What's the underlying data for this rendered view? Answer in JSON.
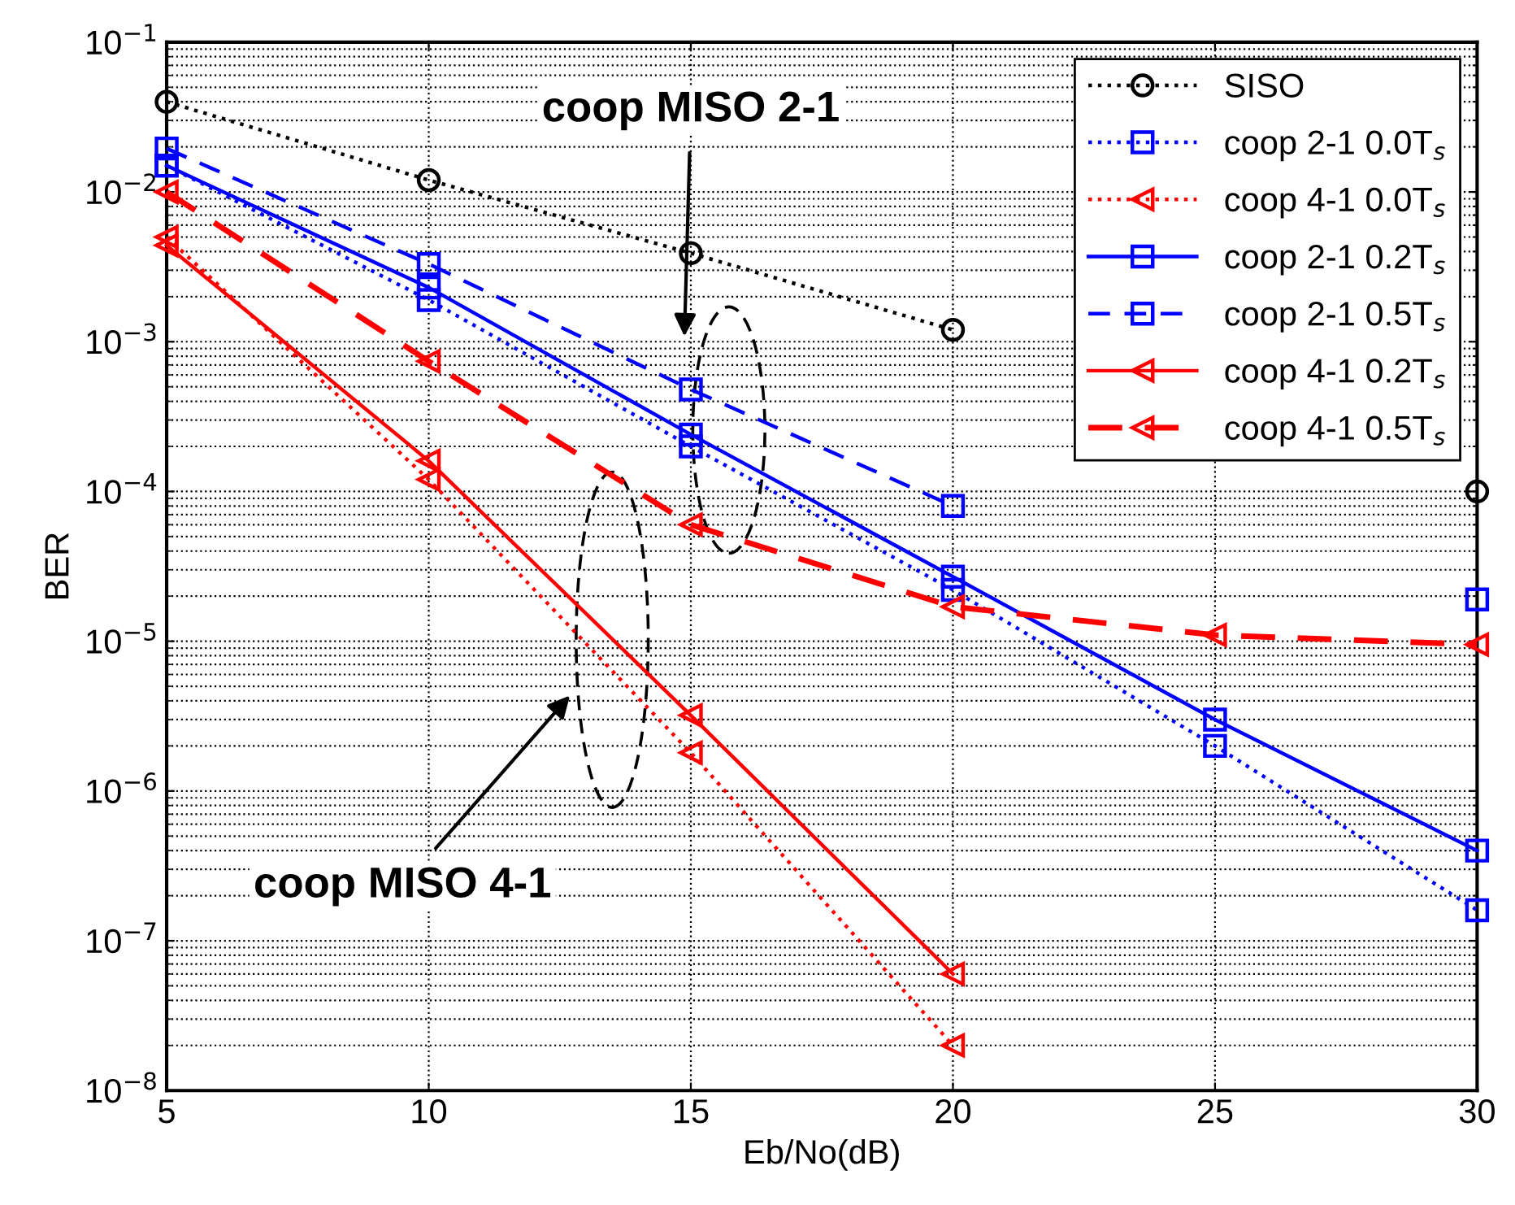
{
  "chart_data": {
    "type": "line",
    "xlabel": "Eb/No(dB)",
    "ylabel": "BER",
    "log": "y",
    "grid": true,
    "legend": "top right",
    "x": [
      5,
      10,
      15,
      20,
      25,
      30
    ],
    "xlim": [
      5,
      30
    ],
    "xticks": [
      5,
      10,
      15,
      20,
      25,
      30
    ],
    "ylim": [
      1e-08,
      0.1
    ],
    "yticks": [
      {
        "value": 1e-08,
        "label": "10$^{−8}$"
      },
      {
        "value": 1e-07,
        "label": "10$^{−7}$"
      },
      {
        "value": 1e-06,
        "label": "10$^{−6}$"
      },
      {
        "value": 1e-05,
        "label": "10$^{−5}$"
      },
      {
        "value": 0.0001,
        "label": "10$^{−4}$"
      },
      {
        "value": 0.001,
        "label": "10$^{−3}$"
      },
      {
        "value": 0.01,
        "label": "10$^{−2}$"
      },
      {
        "value": 0.1,
        "label": "10$^{−1}$"
      }
    ],
    "series": [
      {
        "name": "SISO",
        "color": "#000000",
        "marker": "circle",
        "line_style": "dotted",
        "values": [
          0.04,
          0.012,
          0.0039,
          0.0012,
          null,
          0.0001
        ]
      },
      {
        "name": "coop 2-1 0.0T$_{s}$",
        "color": "#0000ff",
        "marker": "square",
        "line_style": "dotted",
        "values": [
          0.015,
          0.0019,
          0.0002,
          2.2e-05,
          2e-06,
          1.6e-07
        ]
      },
      {
        "name": "coop 4-1 0.0T$_{s}$",
        "color": "#ff0000",
        "marker": "triangle",
        "line_style": "dotted",
        "values": [
          0.005,
          0.00012,
          1.8e-06,
          2e-08,
          null,
          null
        ]
      },
      {
        "name": "coop 2-1 0.2T$_{s}$",
        "color": "#0000ff",
        "marker": "square",
        "line_style": "solid",
        "values": [
          0.015,
          0.0023,
          0.00024,
          2.7e-05,
          3e-06,
          4e-07
        ]
      },
      {
        "name": "coop 2-1 0.5T$_{s}$",
        "color": "#0000ff",
        "marker": "square",
        "line_style": "dashed",
        "values": [
          0.0195,
          0.0033,
          0.00048,
          8e-05,
          null,
          1.9e-05
        ]
      },
      {
        "name": "coop 4-1 0.2T$_{s}$",
        "color": "#ff0000",
        "marker": "triangle",
        "line_style": "solid",
        "values": [
          0.0044,
          0.00016,
          3.2e-06,
          6e-08,
          null,
          null
        ]
      },
      {
        "name": "coop 4-1 0.5T$_{s}$",
        "color": "#ff0000",
        "marker": "triangle",
        "line_style": "dashed",
        "values": [
          0.01,
          0.00074,
          6e-05,
          1.7e-05,
          1.1e-05,
          9.5e-06
        ]
      }
    ],
    "annotations": [
      "coop MISO 2-1",
      "coop MISO 4-1"
    ]
  }
}
